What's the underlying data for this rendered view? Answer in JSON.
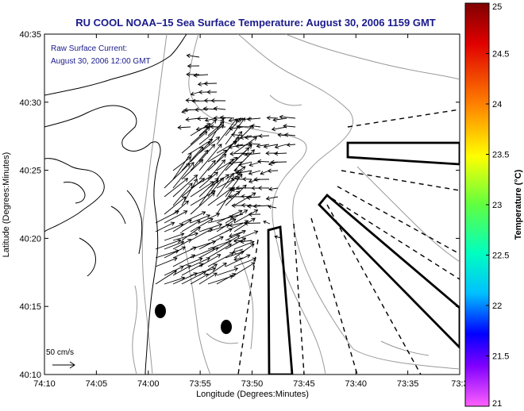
{
  "title": "RU COOL  NOAA–15  Sea Surface Temperature:  August 30, 2006 1159 GMT",
  "annotation": {
    "line1": "Raw Surface Current:",
    "line2": "August 30, 2006 12:00 GMT"
  },
  "scale_label": "50 cm/s",
  "xlabel": "Longitude (Degrees:Minutes)",
  "ylabel": "Latitude (Degrees:Minutes)",
  "x_ticks": [
    "74:10",
    "74:05",
    "74:00",
    "73:55",
    "73:50",
    "73:45",
    "73:40",
    "73:35",
    "73:3"
  ],
  "y_ticks": [
    "40:35",
    "40:30",
    "40:25",
    "40:20",
    "40:15",
    "40:10"
  ],
  "colorbar": {
    "label": "Temperature (°C)",
    "ticks": [
      "25",
      "24.5",
      "24",
      "23.5",
      "23",
      "22.5",
      "22",
      "21.5",
      "21"
    ],
    "range": [
      21,
      25
    ]
  },
  "colors": {
    "title": "#1a1a8c",
    "vectors": "#000000",
    "coast": "#000000",
    "bathymetry": "#999999"
  }
}
